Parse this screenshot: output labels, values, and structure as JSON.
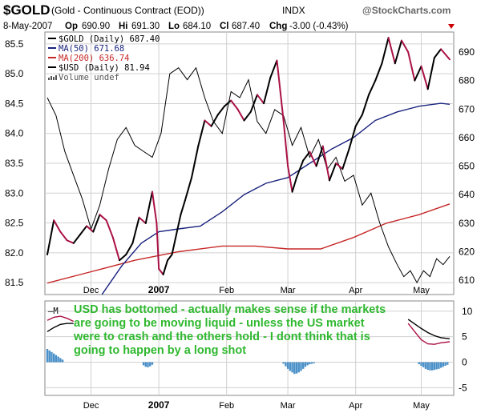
{
  "header": {
    "symbol": "$GOLD",
    "description": "(Gold - Continuous Contract (EOD))",
    "exchange": "INDX",
    "brand": "@StockCharts.com",
    "date": "8-May-2007",
    "open_label": "Op",
    "open": "690.90",
    "high_label": "Hi",
    "high": "691.30",
    "low_label": "Lo",
    "low": "684.10",
    "close_label": "Cl",
    "close": "687.40",
    "change_label": "Chg",
    "change": "-3.00 (-0.43%)",
    "down_arrow_icon": "triangle-down-icon",
    "down_arrow_color": "#cc0000"
  },
  "legend": [
    {
      "text": "$GOLD (Daily) 687.40",
      "color": "#000000",
      "marker": "line"
    },
    {
      "text": "MA(50) 671.68",
      "color": "#1a237e",
      "marker": "line"
    },
    {
      "text": "MA(200) 636.74",
      "color": "#c62828",
      "marker": "line"
    },
    {
      "text": "$USD (Daily) 81.94",
      "color": "#000000",
      "marker": "line"
    },
    {
      "text": "Volume undef",
      "color": "#555555",
      "marker": "bar-icon"
    }
  ],
  "annotation_lines": [
    "USD has bottomed - actually makes sense if the markets",
    "are going to be moving liquid - unless the US market",
    "were to crash and the others hold - I dont think that is",
    "going to happen by a long shot"
  ],
  "lower_panel_legend_glyph": "–M",
  "colors": {
    "gold_up": "#000000",
    "gold_down": "#aa1144",
    "ma50": "#1a237e",
    "ma200": "#c62828",
    "usd": "#000000",
    "histogram": "#4a90c8",
    "annotation": "#2fb82f",
    "grid": "#d0d0d0"
  },
  "chart_data": [
    {
      "type": "line",
      "panel": "main",
      "left_axis": {
        "label": "$USD",
        "ticks": [
          81.5,
          82.0,
          82.5,
          83.0,
          83.5,
          84.0,
          84.5,
          85.0,
          85.5
        ],
        "range": [
          81.3,
          85.7
        ]
      },
      "right_axis": {
        "label": "$GOLD",
        "ticks": [
          610,
          620,
          630,
          640,
          650,
          660,
          670,
          680,
          690
        ],
        "range": [
          605,
          697
        ]
      },
      "x_ticks": [
        "Dec",
        "2007",
        "Feb",
        "Mar",
        "Apr",
        "May"
      ],
      "x_tick_days": [
        20,
        51,
        82,
        110,
        141,
        171
      ],
      "x_range": [
        0,
        184
      ],
      "series": [
        {
          "name": "$GOLD (Daily)",
          "axis": "right",
          "x": [
            0,
            3,
            6,
            9,
            12,
            15,
            18,
            21,
            24,
            27,
            30,
            33,
            36,
            39,
            42,
            45,
            48,
            50,
            51,
            53,
            55,
            57,
            59,
            61,
            63,
            66,
            69,
            72,
            75,
            78,
            81,
            84,
            87,
            90,
            93,
            96,
            99,
            102,
            105,
            108,
            110,
            112,
            114,
            117,
            120,
            123,
            126,
            129,
            132,
            135,
            138,
            141,
            144,
            147,
            150,
            153,
            156,
            159,
            162,
            165,
            168,
            171,
            174,
            177,
            180,
            184
          ],
          "values": [
            619,
            631,
            627,
            624,
            623,
            626,
            629,
            627,
            633,
            631,
            625,
            617,
            619,
            623,
            632,
            630,
            641,
            630,
            614,
            612,
            617,
            619,
            626,
            633,
            638,
            646,
            657,
            666,
            664,
            668,
            671,
            673,
            670,
            666,
            669,
            675,
            672,
            681,
            687,
            666,
            650,
            641,
            646,
            652,
            655,
            650,
            657,
            645,
            651,
            649,
            656,
            664,
            668,
            675,
            680,
            686,
            695,
            686,
            694,
            690,
            680,
            685,
            677,
            688,
            691,
            687.4
          ]
        },
        {
          "name": "MA(50)",
          "axis": "right",
          "x": [
            25,
            34,
            43,
            51,
            60,
            70,
            80,
            90,
            100,
            110,
            120,
            130,
            140,
            150,
            160,
            170,
            180,
            184
          ],
          "values": [
            605,
            615,
            623,
            627,
            628,
            629,
            634,
            640,
            644,
            646,
            651,
            656,
            660,
            666,
            669,
            671,
            672,
            671.68
          ]
        },
        {
          "name": "MA(200)",
          "axis": "right",
          "x": [
            0,
            20,
            40,
            60,
            80,
            95,
            110,
            125,
            140,
            155,
            170,
            184
          ],
          "values": [
            609,
            613,
            617,
            620,
            622,
            622,
            621,
            621,
            625,
            630,
            633,
            636.74
          ]
        },
        {
          "name": "$USD (Daily)",
          "axis": "left",
          "x": [
            0,
            4,
            8,
            12,
            16,
            20,
            24,
            28,
            32,
            36,
            40,
            44,
            48,
            52,
            56,
            60,
            64,
            68,
            72,
            76,
            80,
            84,
            88,
            92,
            96,
            100,
            104,
            108,
            112,
            116,
            120,
            124,
            128,
            132,
            136,
            140,
            144,
            148,
            152,
            156,
            160,
            163,
            166,
            169,
            172,
            175,
            178,
            181,
            184
          ],
          "values": [
            84.6,
            84.3,
            83.7,
            83.3,
            82.9,
            82.4,
            82.8,
            83.4,
            83.9,
            84.1,
            83.8,
            83.7,
            83.6,
            84.0,
            85.0,
            85.1,
            84.9,
            85.1,
            84.6,
            84.2,
            84.0,
            84.7,
            84.6,
            84.9,
            84.2,
            84.0,
            84.4,
            84.3,
            83.8,
            84.1,
            83.6,
            83.9,
            83.4,
            83.6,
            83.2,
            83.3,
            82.8,
            83.0,
            82.5,
            82.1,
            81.8,
            81.6,
            81.7,
            81.5,
            81.7,
            81.6,
            81.9,
            81.8,
            81.94
          ]
        }
      ]
    },
    {
      "type": "bar",
      "panel": "lower",
      "y_axis": {
        "ticks": [
          -5,
          0,
          5,
          10
        ],
        "range": [
          -6.5,
          12
        ]
      },
      "x_ticks": [
        "Dec",
        "2007",
        "Feb",
        "Mar",
        "Apr",
        "May"
      ],
      "x_tick_days": [
        20,
        51,
        82,
        110,
        141,
        171
      ],
      "x_range": [
        0,
        184
      ],
      "series": [
        {
          "name": "histogram",
          "x": [
            0,
            1,
            2,
            3,
            4,
            5,
            6,
            7,
            44,
            45,
            46,
            47,
            48,
            108,
            109,
            110,
            111,
            112,
            113,
            114,
            115,
            116,
            117,
            118,
            119,
            120,
            121,
            122,
            170,
            171,
            172,
            173,
            174,
            175,
            176,
            177,
            178,
            179,
            180,
            181,
            182,
            183
          ],
          "values": [
            2.6,
            2.3,
            2.0,
            1.7,
            1.4,
            1.1,
            0.8,
            0.5,
            -0.6,
            -0.9,
            -1.0,
            -0.8,
            -0.5,
            -0.3,
            -0.8,
            -1.3,
            -1.7,
            -2.0,
            -2.3,
            -2.2,
            -2.0,
            -1.7,
            -1.3,
            -0.9,
            -0.6,
            -0.4,
            -0.3,
            -0.2,
            -0.4,
            -0.7,
            -1.0,
            -1.3,
            -1.5,
            -1.6,
            -1.6,
            -1.5,
            -1.4,
            -1.3,
            -1.1,
            -0.9,
            -0.7,
            -0.5
          ]
        },
        {
          "name": "line-1",
          "kind": "line",
          "x": [
            0,
            3,
            6,
            9,
            12,
            165,
            168,
            171,
            174,
            177,
            180,
            184
          ],
          "values": [
            8.2,
            8.8,
            9.0,
            8.6,
            8.0,
            7.6,
            6.0,
            4.4,
            3.6,
            3.5,
            3.8,
            4.0
          ]
        },
        {
          "name": "line-2",
          "kind": "line",
          "x": [
            0,
            3,
            6,
            9,
            12,
            165,
            168,
            171,
            174,
            177,
            180,
            184
          ],
          "values": [
            6.0,
            6.8,
            7.4,
            7.6,
            7.6,
            8.4,
            7.5,
            6.6,
            5.8,
            5.2,
            4.8,
            4.6
          ]
        }
      ]
    }
  ]
}
